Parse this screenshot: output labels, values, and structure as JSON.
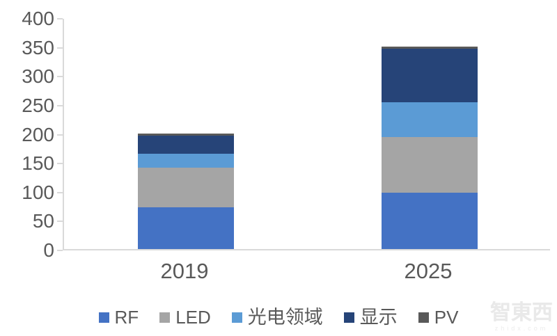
{
  "chart_data": {
    "type": "bar",
    "stacked": true,
    "title": "",
    "xlabel": "",
    "ylabel": "",
    "categories": [
      "2019",
      "2025"
    ],
    "series": [
      {
        "name": "RF",
        "color": "#4472c4",
        "values": [
          72,
          97
        ]
      },
      {
        "name": "LED",
        "color": "#a5a5a5",
        "values": [
          68,
          96
        ]
      },
      {
        "name": "光电领域",
        "color": "#5b9bd5",
        "values": [
          24,
          61
        ]
      },
      {
        "name": "显示",
        "color": "#264478",
        "values": [
          32,
          92
        ]
      },
      {
        "name": "PV",
        "color": "#595959",
        "values": [
          4,
          4
        ]
      }
    ],
    "totals": [
      200,
      350
    ],
    "ylim": [
      0,
      400
    ],
    "yticks": [
      0,
      50,
      100,
      150,
      200,
      250,
      300,
      350,
      400
    ],
    "grid": false,
    "legend_position": "bottom",
    "axis_line_color": "#d9d9d9",
    "axis_label_color": "#595959"
  },
  "watermark": {
    "brand": "智東西",
    "domain": "zhidx.com"
  }
}
